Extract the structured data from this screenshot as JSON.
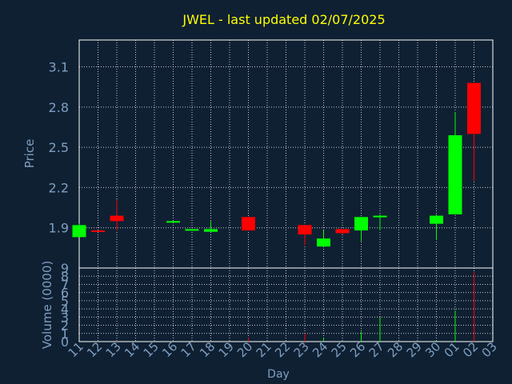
{
  "colors": {
    "background": "#0f2033",
    "title": "#ffff00",
    "axis_text": "#7f9fc0",
    "grid": "#ffffff",
    "up": "#00ff00",
    "down": "#ff0000"
  },
  "chart_data": {
    "type": "candlestick",
    "title": "JWEL - last updated 02/07/2025",
    "price_panel": {
      "ylabel": "Price",
      "ylim": [
        1.6,
        3.3
      ],
      "yticks": [
        1.9,
        2.2,
        2.5,
        2.8,
        3.1
      ],
      "grid": true
    },
    "volume_panel": {
      "ylabel": "Volume (0000)",
      "ylim": [
        0,
        9
      ],
      "yticks": [
        0,
        1,
        2,
        3,
        4,
        5,
        6,
        7,
        8,
        9
      ],
      "grid": true
    },
    "xlabel": "Day",
    "x_ticks": [
      "11",
      "12",
      "13",
      "14",
      "15",
      "16",
      "17",
      "18",
      "19",
      "20",
      "21",
      "22",
      "23",
      "24",
      "25",
      "26",
      "27",
      "28",
      "29",
      "30",
      "01",
      "02",
      "03"
    ],
    "candles": [
      {
        "day": "11",
        "open": 1.83,
        "high": 1.93,
        "low": 1.83,
        "close": 1.92,
        "volume": 0.0
      },
      {
        "day": "12",
        "open": 1.88,
        "high": 1.88,
        "low": 1.87,
        "close": 1.87,
        "volume": 0.0
      },
      {
        "day": "13",
        "open": 1.99,
        "high": 2.11,
        "low": 1.88,
        "close": 1.95,
        "volume": 0.1
      },
      {
        "day": "16",
        "open": 1.94,
        "high": 1.95,
        "low": 1.94,
        "close": 1.95,
        "volume": 0.0
      },
      {
        "day": "17",
        "open": 1.89,
        "high": 1.89,
        "low": 1.88,
        "close": 1.89,
        "volume": 0.0
      },
      {
        "day": "18",
        "open": 1.87,
        "high": 1.95,
        "low": 1.87,
        "close": 1.89,
        "volume": 0.0
      },
      {
        "day": "20",
        "open": 1.98,
        "high": 1.98,
        "low": 1.88,
        "close": 1.88,
        "volume": 0.5
      },
      {
        "day": "23",
        "open": 1.92,
        "high": 1.92,
        "low": 1.77,
        "close": 1.85,
        "volume": 1.0
      },
      {
        "day": "24",
        "open": 1.76,
        "high": 1.88,
        "low": 1.76,
        "close": 1.82,
        "volume": 0.5
      },
      {
        "day": "25",
        "open": 1.89,
        "high": 1.89,
        "low": 1.85,
        "close": 1.86,
        "volume": 0.0
      },
      {
        "day": "26",
        "open": 1.88,
        "high": 1.98,
        "low": 1.8,
        "close": 1.98,
        "volume": 1.2
      },
      {
        "day": "27",
        "open": 1.98,
        "high": 2.0,
        "low": 1.88,
        "close": 1.99,
        "volume": 3.0
      },
      {
        "day": "30",
        "open": 1.93,
        "high": 2.0,
        "low": 1.81,
        "close": 1.99,
        "volume": 0.1
      },
      {
        "day": "01",
        "open": 2.0,
        "high": 2.76,
        "low": 2.0,
        "close": 2.59,
        "volume": 3.8
      },
      {
        "day": "02",
        "open": 2.98,
        "high": 2.98,
        "low": 2.25,
        "close": 2.6,
        "volume": 8.5
      }
    ]
  }
}
